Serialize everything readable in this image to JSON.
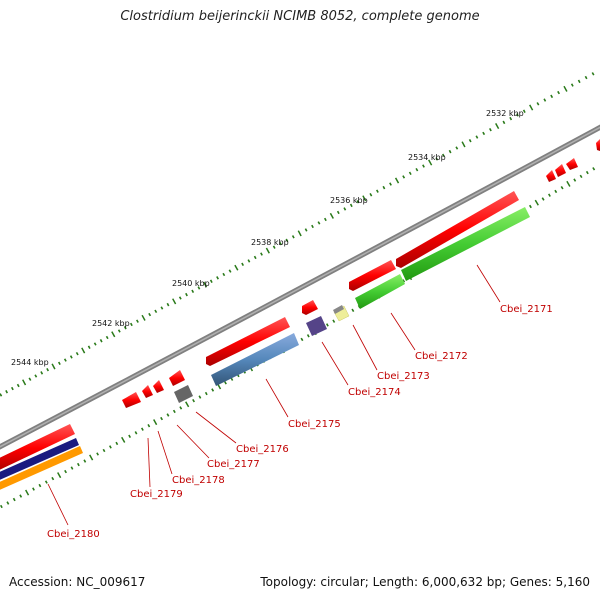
{
  "title": "Clostridium beijerinckii NCIMB 8052, complete genome",
  "footer": {
    "accession": "Accession: NC_009617",
    "summary": "Topology: circular; Length: 6,000,632 bp; Genes: 5,160"
  },
  "ruler_labels": [
    {
      "text": "2532 kbp"
    },
    {
      "text": "2534 kbp"
    },
    {
      "text": "2536 kbp"
    },
    {
      "text": "2538 kbp"
    },
    {
      "text": "2540 kbp"
    },
    {
      "text": "2542 kbp"
    },
    {
      "text": "2544 kbp"
    }
  ],
  "gene_labels": [
    {
      "text": "Cbei_2171"
    },
    {
      "text": "Cbei_2172"
    },
    {
      "text": "Cbei_2173"
    },
    {
      "text": "Cbei_2174"
    },
    {
      "text": "Cbei_2175"
    },
    {
      "text": "Cbei_2176"
    },
    {
      "text": "Cbei_2177"
    },
    {
      "text": "Cbei_2178"
    },
    {
      "text": "Cbei_2179"
    },
    {
      "text": "Cbei_2180"
    }
  ],
  "colors": {
    "backbone": "#808080",
    "cds_forward": "#ff0000",
    "label": "#c00000",
    "green": "#44cc33",
    "blue": "#5588bb",
    "navy": "#1a1a80",
    "orange": "#ff9900",
    "purple": "#554488",
    "yellow": "#eeee99",
    "gray_box": "#666666",
    "tick": "#2a7a1a"
  }
}
